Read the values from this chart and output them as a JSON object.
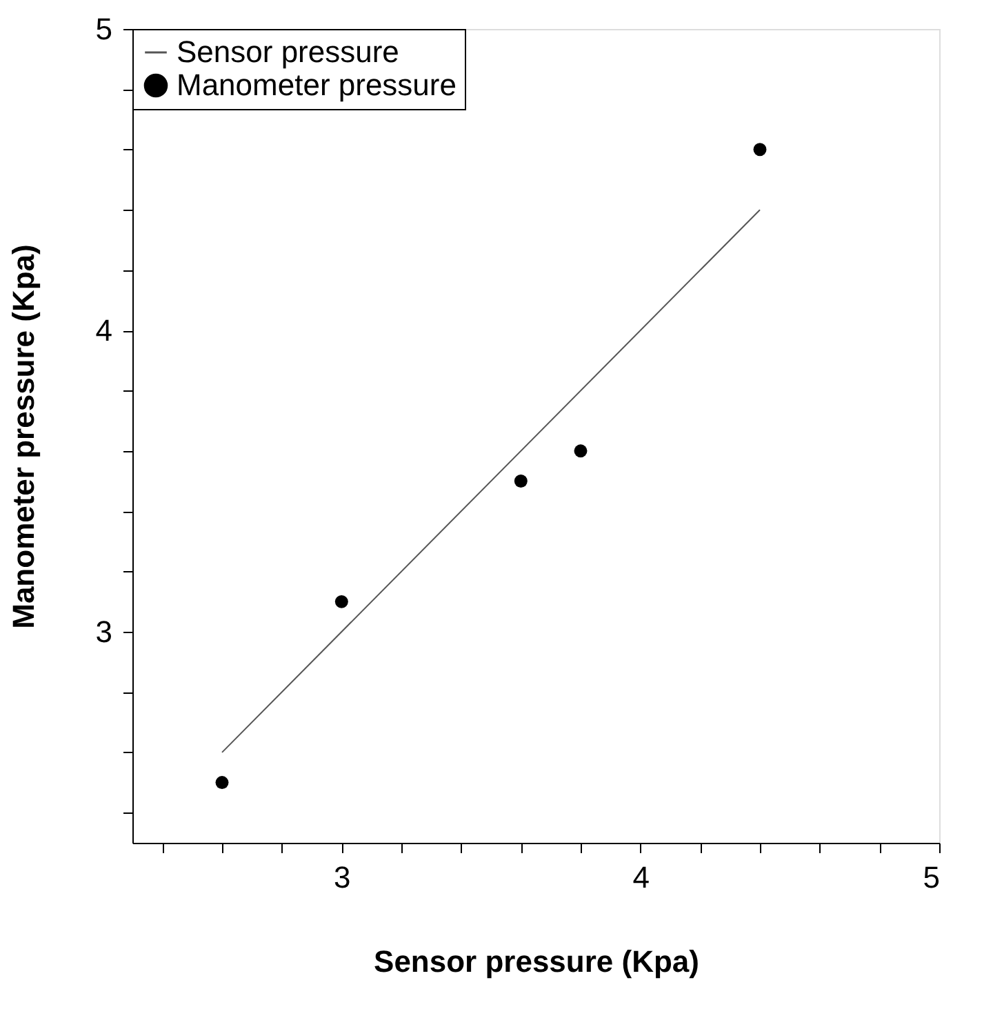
{
  "chart_data": {
    "type": "scatter",
    "xlabel": "Sensor pressure (Kpa)",
    "ylabel": "Manometer pressure (Kpa)",
    "xlim": [
      2.3,
      5
    ],
    "ylim": [
      2.3,
      5
    ],
    "xticks": [
      {
        "value": 2.4,
        "label": null
      },
      {
        "value": 2.6,
        "label": null
      },
      {
        "value": 2.8,
        "label": null
      },
      3,
      {
        "value": 3.2,
        "label": null
      },
      {
        "value": 3.4,
        "label": null
      },
      {
        "value": 3.6,
        "label": null
      },
      {
        "value": 3.8,
        "label": null
      },
      4,
      {
        "value": 4.2,
        "label": null
      },
      {
        "value": 4.4,
        "label": null
      },
      {
        "value": 4.6,
        "label": null
      },
      {
        "value": 4.8,
        "label": null
      },
      5
    ],
    "yticks": [
      {
        "value": 2.4,
        "label": null
      },
      {
        "value": 2.6,
        "label": null
      },
      {
        "value": 2.8,
        "label": null
      },
      3,
      {
        "value": 3.2,
        "label": null
      },
      {
        "value": 3.4,
        "label": null
      },
      {
        "value": 3.6,
        "label": null
      },
      {
        "value": 3.8,
        "label": null
      },
      4,
      {
        "value": 4.2,
        "label": null
      },
      {
        "value": 4.4,
        "label": null
      },
      {
        "value": 4.6,
        "label": null
      },
      {
        "value": 4.8,
        "label": null
      },
      5
    ],
    "grid": false,
    "legend": "top left",
    "series": [
      {
        "name": "Sensor pressure",
        "type": "line",
        "color": "#555555",
        "x": [
          2.6,
          4.4
        ],
        "values": [
          2.6,
          4.4
        ],
        "marker": "none",
        "line_style": "solid"
      },
      {
        "name": "Manometer pressure",
        "color": "#000000",
        "x": [
          2.6,
          3.0,
          3.6,
          3.8,
          4.4
        ],
        "values": [
          2.5,
          3.1,
          3.5,
          3.6,
          4.6
        ],
        "marker": "circle"
      }
    ]
  }
}
